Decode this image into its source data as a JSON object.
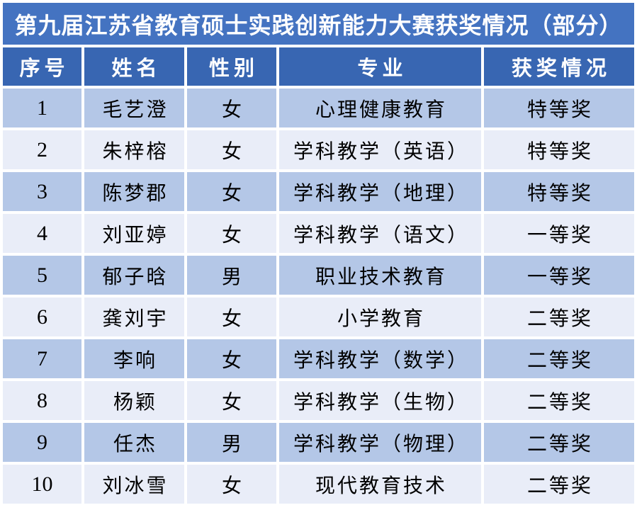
{
  "title": "第九届江苏省教育硕士实践创新能力大赛获奖情况（部分）",
  "colors": {
    "title_bg": "#4473C1",
    "header_bg": "#3866B2",
    "row_odd": "#B4C7E7",
    "row_even": "#E9EDF8",
    "header_text": "#FFFFFF",
    "body_text": "#000000",
    "page_bg": "#FFFFFF"
  },
  "chart_data": {
    "type": "table",
    "title": "第九届江苏省教育硕士实践创新能力大赛获奖情况（部分）",
    "columns": [
      "序号",
      "姓名",
      "性别",
      "专业",
      "获奖情况"
    ],
    "rows": [
      [
        "1",
        "毛艺澄",
        "女",
        "心理健康教育",
        "特等奖"
      ],
      [
        "2",
        "朱梓榕",
        "女",
        "学科教学（英语）",
        "特等奖"
      ],
      [
        "3",
        "陈梦郡",
        "女",
        "学科教学（地理）",
        "特等奖"
      ],
      [
        "4",
        "刘亚婷",
        "女",
        "学科教学（语文）",
        "一等奖"
      ],
      [
        "5",
        "郁子晗",
        "男",
        "职业技术教育",
        "一等奖"
      ],
      [
        "6",
        "龚刘宇",
        "女",
        "小学教育",
        "二等奖"
      ],
      [
        "7",
        "李响",
        "女",
        "学科教学（数学）",
        "二等奖"
      ],
      [
        "8",
        "杨颖",
        "女",
        "学科教学（生物）",
        "二等奖"
      ],
      [
        "9",
        "任杰",
        "男",
        "学科教学（物理）",
        "二等奖"
      ],
      [
        "10",
        "刘冰雪",
        "女",
        "现代教育技术",
        "二等奖"
      ]
    ]
  }
}
